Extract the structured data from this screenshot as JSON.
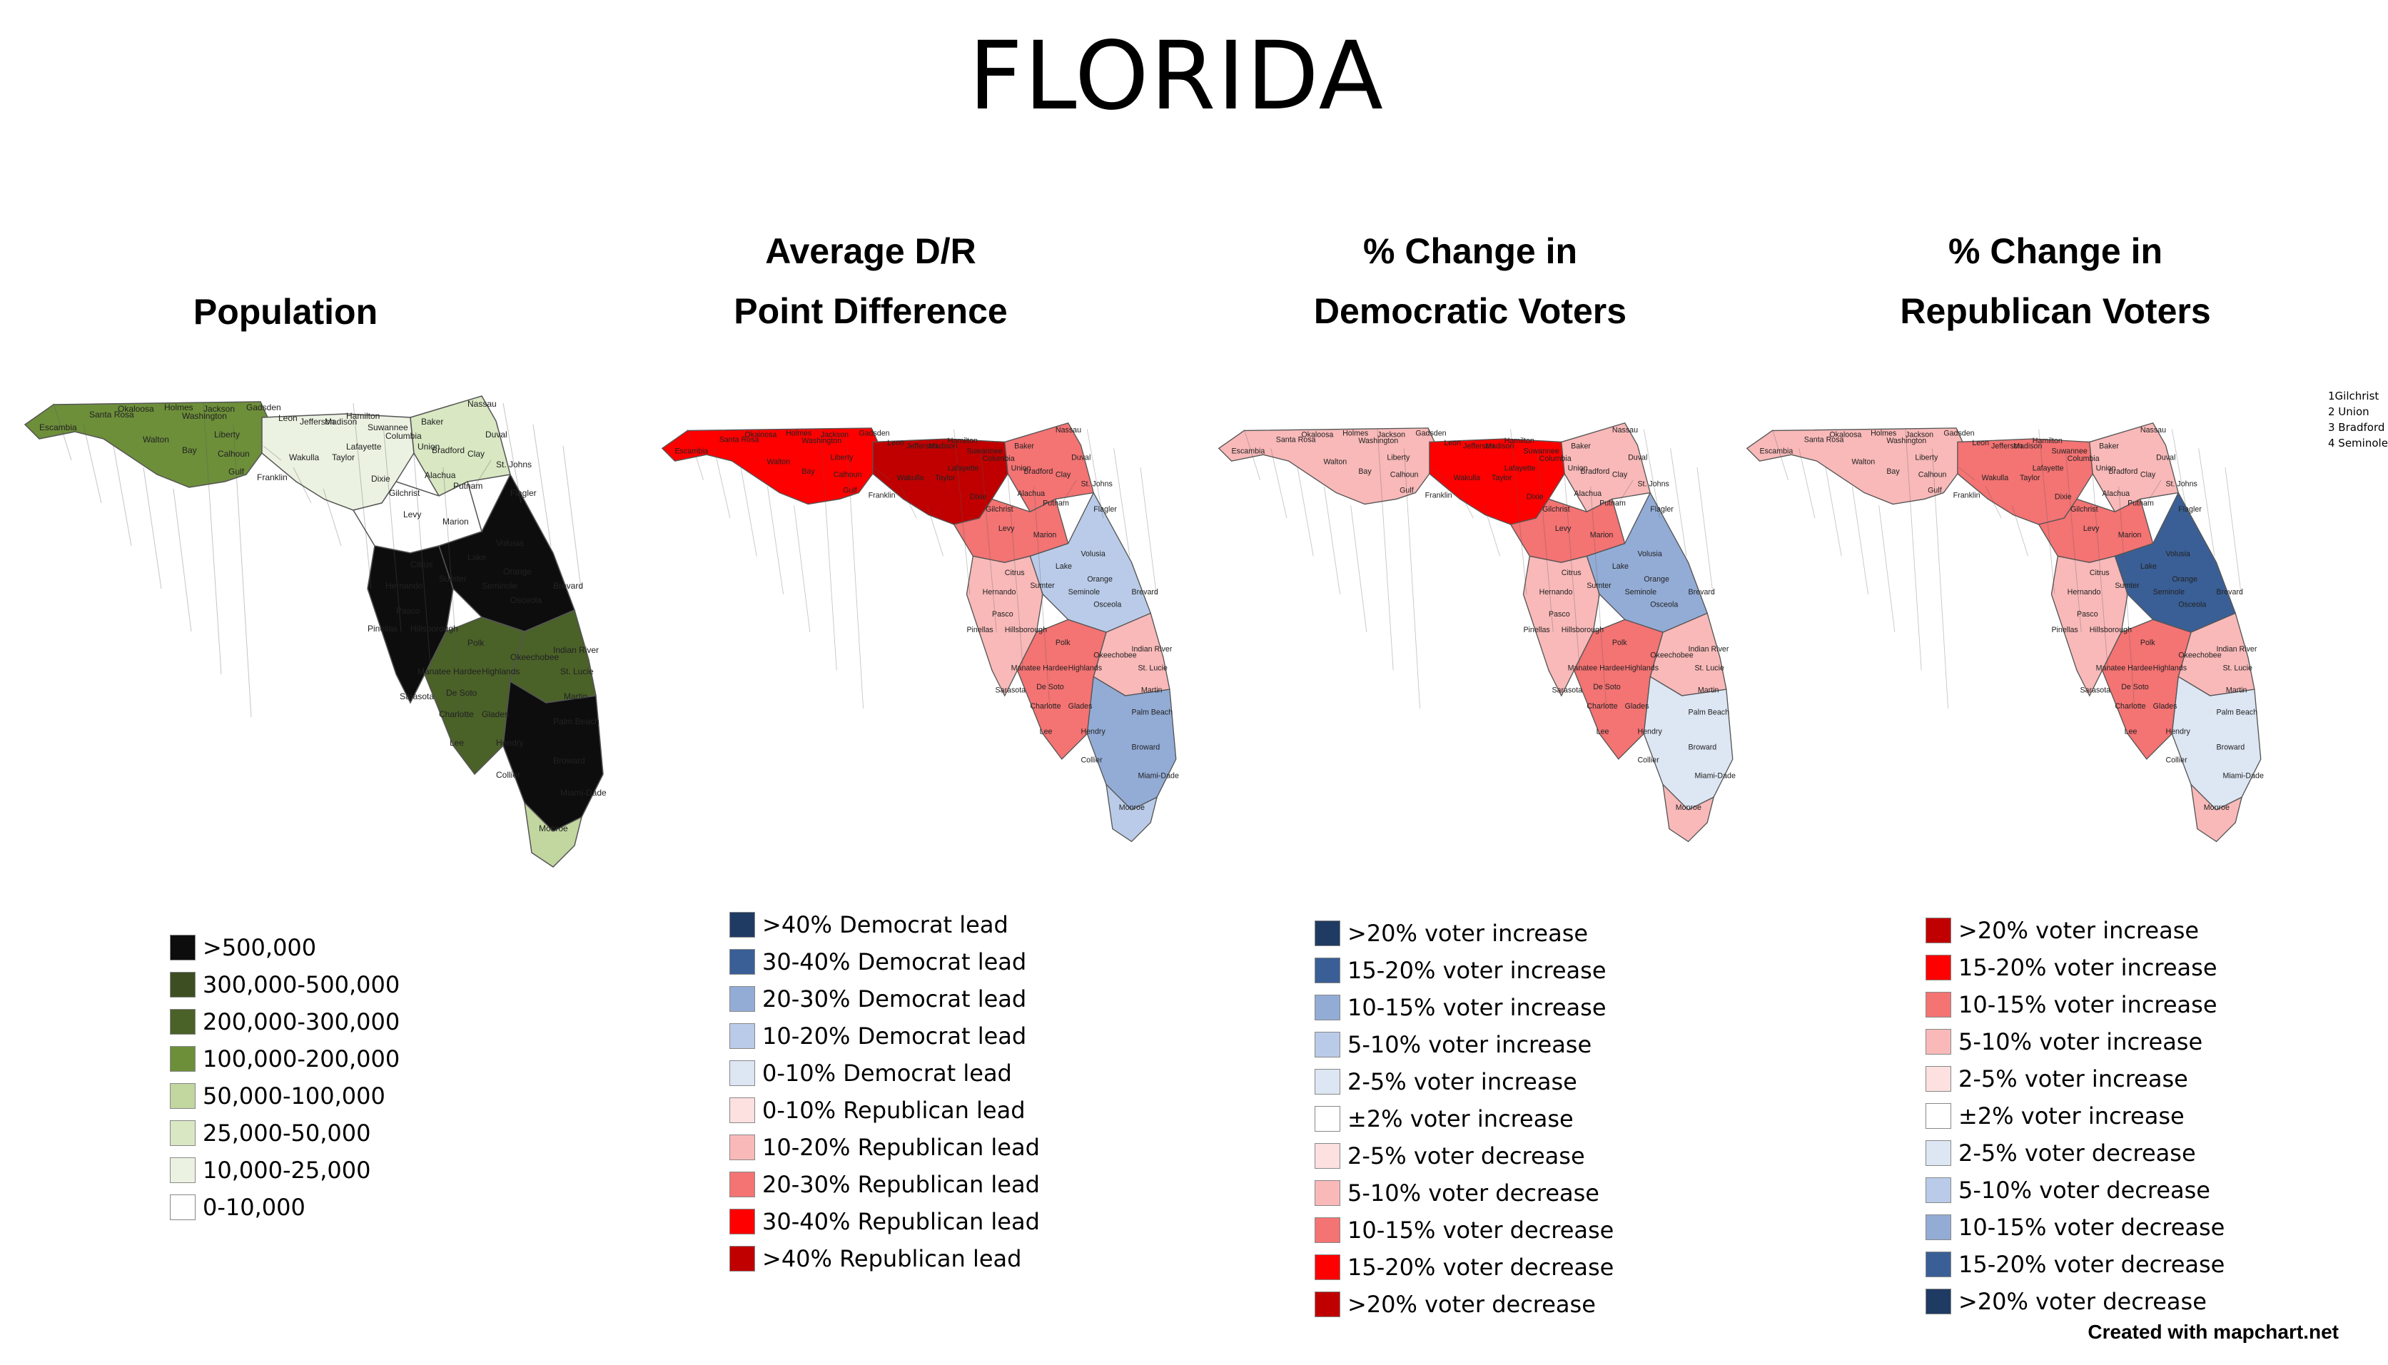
{
  "title": "FLORIDA",
  "credit": "Created with mapchart.net",
  "inset_key": [
    "1Gilchrist",
    "2 Union",
    "3 Bradford",
    "4 Seminole"
  ],
  "county_labels": [
    "Escambia",
    "Santa Rosa",
    "Okaloosa",
    "Walton",
    "Holmes",
    "Jackson",
    "Washington",
    "Bay",
    "Calhoun",
    "Gadsden",
    "Leon",
    "Jefferson",
    "Madison",
    "Hamilton",
    "Suwannee",
    "Columbia",
    "Baker",
    "Nassau",
    "Duval",
    "Clay",
    "Putnam",
    "Flagler",
    "St. Johns",
    "Alachua",
    "Levy",
    "Marion",
    "Volusia",
    "Lake",
    "Orange",
    "Osceola",
    "Brevard",
    "Citrus",
    "Sumter",
    "Hernando",
    "Pasco",
    "Pinellas",
    "Hillsborough",
    "Polk",
    "Manatee",
    "Hardee",
    "Highlands",
    "Okeechobee",
    "Indian River",
    "St. Lucie",
    "Martin",
    "Sarasota",
    "De Soto",
    "Charlotte",
    "Glades",
    "Palm Beach",
    "Lee",
    "Hendry",
    "Broward",
    "Collier",
    "Miami-Dade",
    "Monroe",
    "Gulf",
    "Franklin",
    "Liberty",
    "Wakulla",
    "Taylor",
    "Lafayette",
    "Dixie",
    "Gilchrist",
    "Union",
    "Bradford",
    "Seminole"
  ],
  "panels": [
    {
      "title_lines": [
        "Population"
      ],
      "legend": [
        {
          "label": ">500,000",
          "color": "#0d0d0d"
        },
        {
          "label": "300,000-500,000",
          "color": "#3d4f22"
        },
        {
          "label": "200,000-300,000",
          "color": "#4a6128"
        },
        {
          "label": "100,000-200,000",
          "color": "#6d8f3a"
        },
        {
          "label": "50,000-100,000",
          "color": "#c2d6a0"
        },
        {
          "label": "25,000-50,000",
          "color": "#d9e7c3"
        },
        {
          "label": "10,000-25,000",
          "color": "#ecf2e2"
        },
        {
          "label": "0-10,000",
          "color": "#ffffff"
        }
      ],
      "fills": {
        "panhandle": "#6d8f3a",
        "bigbend": "#ecf2e2",
        "northeast": "#d9e7c3",
        "central": "#0d0d0d",
        "westcoast": "#0d0d0d",
        "eastcoast": "#4a6128",
        "southwest": "#4a6128",
        "south": "#0d0d0d",
        "interior": "#ffffff",
        "keys": "#c2d6a0"
      }
    },
    {
      "title_lines": [
        "Average D/R",
        "Point Difference"
      ],
      "legend": [
        {
          "label": ">40% Democrat lead",
          "color": "#1f3b63"
        },
        {
          "label": "30-40% Democrat lead",
          "color": "#3a5f96"
        },
        {
          "label": "20-30% Democrat lead",
          "color": "#93acd6"
        },
        {
          "label": "10-20% Democrat lead",
          "color": "#b9cbe8"
        },
        {
          "label": "0-10% Democrat lead",
          "color": "#dde6f3"
        },
        {
          "label": "0-10% Republican lead",
          "color": "#fde0e0"
        },
        {
          "label": "10-20% Republican lead",
          "color": "#f9b9b9"
        },
        {
          "label": "20-30% Republican lead",
          "color": "#f47373"
        },
        {
          "label": "30-40% Republican lead",
          "color": "#ff0000"
        },
        {
          "label": ">40% Republican lead",
          "color": "#c00000"
        }
      ],
      "fills": {
        "panhandle": "#ff0000",
        "bigbend": "#c00000",
        "northeast": "#f47373",
        "central": "#b9cbe8",
        "westcoast": "#f9b9b9",
        "eastcoast": "#f9b9b9",
        "southwest": "#f47373",
        "south": "#93acd6",
        "interior": "#f47373",
        "keys": "#b9cbe8"
      }
    },
    {
      "title_lines": [
        "% Change in",
        "Democratic Voters"
      ],
      "legend": [
        {
          "label": ">20% voter increase",
          "color": "#1f3b63"
        },
        {
          "label": "15-20% voter increase",
          "color": "#3a5f96"
        },
        {
          "label": "10-15% voter increase",
          "color": "#93acd6"
        },
        {
          "label": "5-10% voter increase",
          "color": "#b9cbe8"
        },
        {
          "label": "2-5% voter increase",
          "color": "#dde6f3"
        },
        {
          "label": "±2% voter increase",
          "color": "#ffffff"
        },
        {
          "label": "2-5% voter decrease",
          "color": "#fde0e0"
        },
        {
          "label": "5-10% voter decrease",
          "color": "#f9b9b9"
        },
        {
          "label": "10-15% voter decrease",
          "color": "#f47373"
        },
        {
          "label": "15-20% voter decrease",
          "color": "#ff0000"
        },
        {
          "label": ">20% voter decrease",
          "color": "#c00000"
        }
      ],
      "fills": {
        "panhandle": "#f9b9b9",
        "bigbend": "#ff0000",
        "northeast": "#f9b9b9",
        "central": "#93acd6",
        "westcoast": "#f9b9b9",
        "eastcoast": "#f9b9b9",
        "southwest": "#f47373",
        "south": "#dde6f3",
        "interior": "#f47373",
        "keys": "#f9b9b9"
      }
    },
    {
      "title_lines": [
        "% Change in",
        "Republican Voters"
      ],
      "legend": [
        {
          "label": ">20% voter increase",
          "color": "#c00000"
        },
        {
          "label": "15-20% voter increase",
          "color": "#ff0000"
        },
        {
          "label": "10-15% voter increase",
          "color": "#f47373"
        },
        {
          "label": "5-10% voter increase",
          "color": "#f9b9b9"
        },
        {
          "label": "2-5% voter increase",
          "color": "#fde0e0"
        },
        {
          "label": "±2% voter increase",
          "color": "#ffffff"
        },
        {
          "label": "2-5% voter decrease",
          "color": "#dde6f3"
        },
        {
          "label": "5-10% voter decrease",
          "color": "#b9cbe8"
        },
        {
          "label": "10-15% voter decrease",
          "color": "#93acd6"
        },
        {
          "label": "15-20% voter decrease",
          "color": "#3a5f96"
        },
        {
          "label": ">20% voter decrease",
          "color": "#1f3b63"
        }
      ],
      "fills": {
        "panhandle": "#f9b9b9",
        "bigbend": "#f47373",
        "northeast": "#f9b9b9",
        "central": "#3a5f96",
        "westcoast": "#f9b9b9",
        "eastcoast": "#f9b9b9",
        "southwest": "#f47373",
        "south": "#dde6f3",
        "interior": "#f47373",
        "keys": "#f9b9b9"
      }
    }
  ]
}
